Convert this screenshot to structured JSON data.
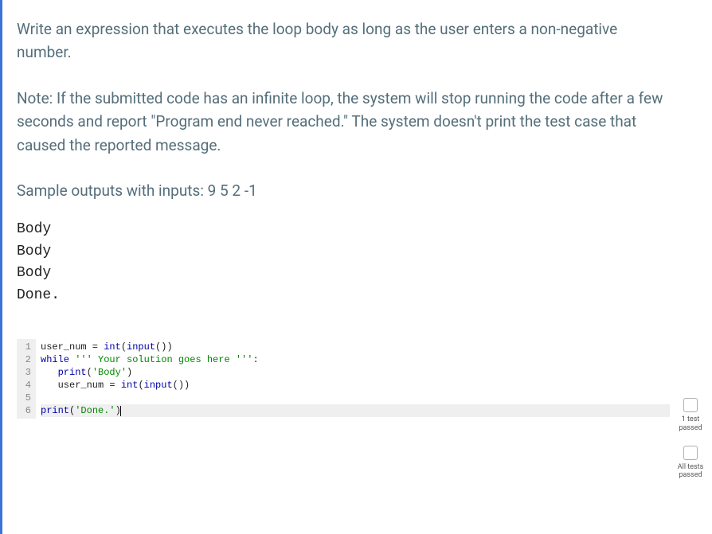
{
  "prompt": {
    "p1": "Write an expression that executes the loop body as long as the user enters a non-negative number.",
    "p2": "Note: If the submitted code has an infinite loop, the system will stop running the code after a few seconds and report \"Program end never reached.\" The system doesn't print the test case that caused the reported message.",
    "p3": "Sample outputs with inputs: 9 5 2 -1"
  },
  "sample_output": "Body\nBody\nBody\nDone.",
  "code": {
    "line_numbers": [
      "1",
      "2",
      "3",
      "4",
      "5",
      "6"
    ],
    "lines": [
      {
        "hl": false,
        "tokens": [
          {
            "t": "user_num = ",
            "c": "tok-plain"
          },
          {
            "t": "int",
            "c": "tok-func"
          },
          {
            "t": "(",
            "c": "tok-plain"
          },
          {
            "t": "input",
            "c": "tok-func"
          },
          {
            "t": "())",
            "c": "tok-plain"
          }
        ]
      },
      {
        "hl": false,
        "tokens": [
          {
            "t": "while ",
            "c": "tok-kw"
          },
          {
            "t": "''' Your solution goes here '''",
            "c": "tok-str"
          },
          {
            "t": ":",
            "c": "tok-plain"
          }
        ]
      },
      {
        "hl": false,
        "tokens": [
          {
            "t": "   ",
            "c": "tok-plain"
          },
          {
            "t": "print",
            "c": "tok-func"
          },
          {
            "t": "(",
            "c": "tok-plain"
          },
          {
            "t": "'Body'",
            "c": "tok-str"
          },
          {
            "t": ")",
            "c": "tok-plain"
          }
        ]
      },
      {
        "hl": false,
        "tokens": [
          {
            "t": "   user_num = ",
            "c": "tok-plain"
          },
          {
            "t": "int",
            "c": "tok-func"
          },
          {
            "t": "(",
            "c": "tok-plain"
          },
          {
            "t": "input",
            "c": "tok-func"
          },
          {
            "t": "())",
            "c": "tok-plain"
          }
        ]
      },
      {
        "hl": false,
        "tokens": [
          {
            "t": "",
            "c": "tok-plain"
          }
        ]
      },
      {
        "hl": true,
        "cursor": true,
        "tokens": [
          {
            "t": "print",
            "c": "tok-func"
          },
          {
            "t": "(",
            "c": "tok-plain"
          },
          {
            "t": "'Done.'",
            "c": "tok-str"
          },
          {
            "t": ")",
            "c": "tok-plain"
          }
        ]
      }
    ]
  },
  "status": {
    "item1": {
      "label": "1 test\npassed"
    },
    "item2": {
      "label": "All tests\npassed"
    }
  },
  "colors": {
    "accent_border": "#3b73d6",
    "prompt_text": "#546e7a",
    "gutter_bg": "#efefef",
    "keyword": "#0000aa",
    "string": "#008800"
  }
}
